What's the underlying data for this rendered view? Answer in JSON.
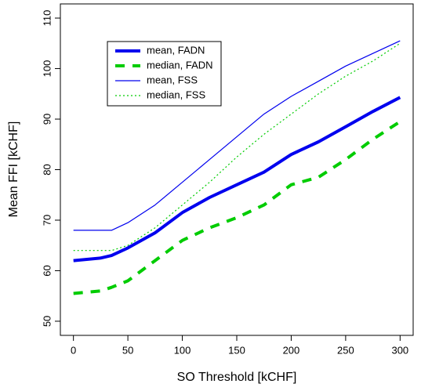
{
  "chart_data": {
    "type": "line",
    "xlabel": "SO Threshold [kCHF]",
    "ylabel": "Mean FFI [kCHF]",
    "x": [
      0,
      25,
      35,
      50,
      75,
      100,
      125,
      150,
      175,
      200,
      225,
      250,
      275,
      300
    ],
    "xlim": [
      -12,
      312
    ],
    "xticks": [
      0,
      50,
      100,
      150,
      200,
      250,
      300
    ],
    "ylim": [
      47.2,
      112.8
    ],
    "yticks": [
      50,
      60,
      70,
      80,
      90,
      100,
      110
    ],
    "legend": "top-left",
    "series": [
      {
        "name": "mean, FADN",
        "color": "#0000ee",
        "width": 4,
        "dash": "solid",
        "values": [
          62,
          62.5,
          63,
          64.5,
          67.5,
          71.5,
          74.5,
          77,
          79.5,
          83,
          85.5,
          88.5,
          91.5,
          94.3
        ]
      },
      {
        "name": "median, FADN",
        "color": "#00cc00",
        "width": 4,
        "dash": "dashed",
        "values": [
          55.5,
          56,
          56.7,
          58,
          62,
          66,
          68.5,
          70.5,
          73,
          77,
          78.5,
          82,
          86,
          89.5
        ]
      },
      {
        "name": "mean, FSS",
        "color": "#0000ee",
        "width": 1.2,
        "dash": "solid",
        "values": [
          68,
          68,
          68,
          69.5,
          73,
          77.5,
          82,
          86.5,
          91,
          94.5,
          97.5,
          100.5,
          103,
          105.5
        ]
      },
      {
        "name": "median, FSS",
        "color": "#00cc00",
        "width": 1.2,
        "dash": "dotted",
        "values": [
          64,
          64,
          64,
          65,
          68.5,
          73,
          77.5,
          82.5,
          87,
          91,
          95,
          98.5,
          101.5,
          105
        ]
      }
    ]
  }
}
